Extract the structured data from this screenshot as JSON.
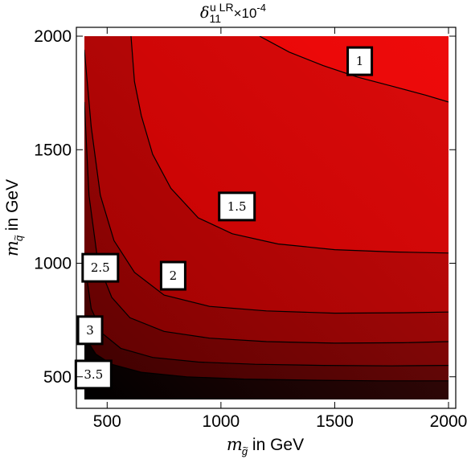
{
  "chart_data": {
    "type": "contour",
    "title": {
      "symbol": "δ",
      "subscript": "11",
      "superscript": "u LR",
      "factor": "×10",
      "exponent": "-4"
    },
    "xlabel": {
      "symbol": "m",
      "subscript": "g",
      "accent": "~",
      "rest": " in GeV"
    },
    "ylabel": {
      "symbol": "m",
      "subscript": "q",
      "accent": "~",
      "rest": " in GeV"
    },
    "xlim": [
      400,
      2000
    ],
    "ylim": [
      400,
      2000
    ],
    "x_ticks": [
      500,
      1000,
      1500,
      2000
    ],
    "y_ticks": [
      500,
      1000,
      1500,
      2000
    ],
    "x_tick_labels": [
      "500",
      "1000",
      "1500",
      "2000"
    ],
    "y_tick_labels": [
      "500",
      "1000",
      "1500",
      "2000"
    ],
    "contour_levels": [
      1,
      1.5,
      2,
      2.5,
      3,
      3.5
    ],
    "contour_labels": [
      {
        "text": "1",
        "x": 1610,
        "y": 1890
      },
      {
        "text": "1.5",
        "x": 1070,
        "y": 1250
      },
      {
        "text": "2",
        "x": 790,
        "y": 945
      },
      {
        "text": "2.5",
        "x": 470,
        "y": 980
      },
      {
        "text": "3",
        "x": 425,
        "y": 705
      },
      {
        "text": "3.5",
        "x": 440,
        "y": 510
      }
    ],
    "contours": [
      {
        "level": 1,
        "x": [
          1170,
          1300,
          1450,
          1600,
          1750,
          1900,
          2000
        ],
        "y": [
          2000,
          1930,
          1870,
          1820,
          1780,
          1740,
          1710
        ]
      },
      {
        "level": 1.5,
        "x": [
          605,
          620,
          650,
          700,
          780,
          900,
          1050,
          1250,
          1500,
          1750,
          2000
        ],
        "y": [
          2000,
          1800,
          1650,
          1480,
          1330,
          1200,
          1130,
          1085,
          1060,
          1050,
          1045
        ]
      },
      {
        "level": 2,
        "x": [
          400,
          430,
          470,
          530,
          620,
          750,
          950,
          1200,
          1500,
          1800,
          2000
        ],
        "y": [
          1940,
          1600,
          1300,
          1100,
          960,
          860,
          810,
          790,
          780,
          782,
          785
        ]
      },
      {
        "level": 2.5,
        "x": [
          400,
          420,
          460,
          520,
          600,
          750,
          950,
          1200,
          1500,
          1800,
          2000
        ],
        "y": [
          1710,
          1300,
          1000,
          850,
          760,
          700,
          670,
          655,
          648,
          650,
          655
        ]
      },
      {
        "level": 3,
        "x": [
          400,
          430,
          480,
          560,
          700,
          900,
          1150,
          1450,
          1750,
          2000
        ],
        "y": [
          1010,
          800,
          690,
          625,
          585,
          565,
          555,
          550,
          548,
          550
        ]
      },
      {
        "level": 3.5,
        "x": [
          400,
          450,
          520,
          650,
          850,
          1100,
          1400,
          1700,
          2000
        ],
        "y": [
          680,
          600,
          555,
          520,
          500,
          490,
          485,
          482,
          482
        ]
      }
    ],
    "band_colors": [
      "#000000",
      "#3e0000",
      "#600000",
      "#800000",
      "#a00000",
      "#c40000",
      "#e40000",
      "#ff0808"
    ],
    "grid": false,
    "frame_color": "#000000"
  }
}
